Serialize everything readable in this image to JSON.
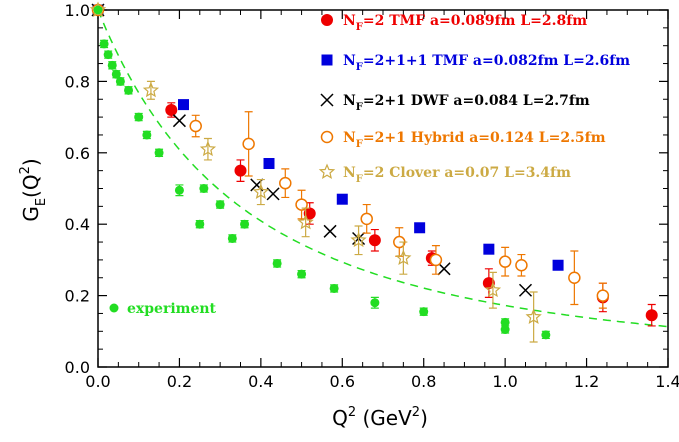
{
  "chart_data": {
    "type": "scatter",
    "title": "",
    "xlabel": {
      "base": "Q",
      "sup": "2",
      "unit_pre": " (GeV",
      "unit_sup": "2",
      "unit_post": ")"
    },
    "ylabel": {
      "base": "G",
      "sub": "E",
      "arg_pre": "(Q",
      "arg_sup": "2",
      "arg_post": ")"
    },
    "xlim": [
      0,
      1.4
    ],
    "ylim": [
      0,
      1.0
    ],
    "xticks": [
      "0.0",
      "0.2",
      "0.4",
      "0.6",
      "0.8",
      "1.0",
      "1.2",
      "1.4"
    ],
    "yticks": [
      "0.0",
      "0.2",
      "0.4",
      "0.6",
      "0.8",
      "1.0"
    ],
    "legend_placement": "top-right",
    "series": [
      {
        "name": "N_F=2 TMF a=0.089fm L=2.8fm",
        "label": {
          "pre": "N",
          "sub": "F",
          "post": "=2 TMF a=0.089fm L=2.8fm"
        },
        "marker": "filled-circle",
        "color": "#ee0000",
        "points": [
          [
            0.0,
            1.0
          ],
          [
            0.18,
            0.72
          ],
          [
            0.35,
            0.55
          ],
          [
            0.52,
            0.43
          ],
          [
            0.68,
            0.355
          ],
          [
            0.82,
            0.305
          ],
          [
            0.96,
            0.235
          ],
          [
            1.24,
            0.195
          ],
          [
            1.36,
            0.145
          ]
        ],
        "errors": [
          0,
          0.02,
          0.03,
          0.03,
          0.03,
          0.02,
          0.04,
          0.04,
          0.03
        ]
      },
      {
        "name": "N_F=2+1+1 TMF a=0.082fm L=2.6fm",
        "label": {
          "pre": "N",
          "sub": "F",
          "post": "=2+1+1 TMF a=0.082fm L=2.6fm"
        },
        "marker": "filled-square",
        "color": "#0000dd",
        "points": [
          [
            0.0,
            1.0
          ],
          [
            0.21,
            0.735
          ],
          [
            0.42,
            0.57
          ],
          [
            0.6,
            0.47
          ],
          [
            0.79,
            0.39
          ],
          [
            0.96,
            0.33
          ],
          [
            1.13,
            0.285
          ]
        ],
        "errors": [
          0,
          0,
          0,
          0,
          0,
          0,
          0
        ]
      },
      {
        "name": "N_F=2+1 DWF a=0.084 L=2.7fm",
        "label": {
          "pre": "N",
          "sub": "F",
          "post": "=2+1 DWF a=0.084 L=2.7fm"
        },
        "marker": "cross",
        "color": "#000000",
        "points": [
          [
            0.0,
            1.0
          ],
          [
            0.2,
            0.69
          ],
          [
            0.39,
            0.51
          ],
          [
            0.43,
            0.485
          ],
          [
            0.57,
            0.38
          ],
          [
            0.64,
            0.36
          ],
          [
            0.85,
            0.275
          ],
          [
            1.05,
            0.215
          ]
        ],
        "errors": [
          0,
          0,
          0,
          0,
          0,
          0,
          0,
          0
        ]
      },
      {
        "name": "N_F=2+1 Hybrid a=0.124 L=2.5fm",
        "label": {
          "pre": "N",
          "sub": "F",
          "post": "=2+1 Hybrid a=0.124 L=2.5fm"
        },
        "marker": "open-circle",
        "color": "#ee7700",
        "points": [
          [
            0.0,
            1.0
          ],
          [
            0.24,
            0.675
          ],
          [
            0.37,
            0.625
          ],
          [
            0.46,
            0.515
          ],
          [
            0.5,
            0.455
          ],
          [
            0.66,
            0.415
          ],
          [
            0.74,
            0.35
          ],
          [
            0.83,
            0.3
          ],
          [
            1.0,
            0.295
          ],
          [
            1.04,
            0.285
          ],
          [
            1.17,
            0.25
          ],
          [
            1.24,
            0.2
          ]
        ],
        "errors": [
          0,
          0.03,
          0.09,
          0.04,
          0.04,
          0.04,
          0.04,
          0.04,
          0.04,
          0.03,
          0.075,
          0.035
        ]
      },
      {
        "name": "N_F=2 Clover a=0.07 L=3.4fm",
        "label": {
          "pre": "N",
          "sub": "F",
          "post": "=2 Clover a=0.07 L=3.4fm"
        },
        "marker": "star",
        "color": "#ccaa44",
        "points": [
          [
            0.0,
            1.0
          ],
          [
            0.13,
            0.775
          ],
          [
            0.27,
            0.61
          ],
          [
            0.4,
            0.49
          ],
          [
            0.51,
            0.405
          ],
          [
            0.64,
            0.355
          ],
          [
            0.75,
            0.305
          ],
          [
            0.97,
            0.215
          ],
          [
            1.07,
            0.14
          ]
        ],
        "errors": [
          0,
          0.025,
          0.03,
          0.035,
          0.04,
          0.04,
          0.045,
          0.05,
          0.07
        ]
      },
      {
        "name": "experiment",
        "label": {
          "pre": "experiment",
          "sub": "",
          "post": ""
        },
        "marker": "small-filled-circle",
        "color": "#22dd22",
        "points": [
          [
            0.0,
            1.0
          ],
          [
            0.015,
            0.905
          ],
          [
            0.025,
            0.875
          ],
          [
            0.035,
            0.845
          ],
          [
            0.045,
            0.82
          ],
          [
            0.055,
            0.8
          ],
          [
            0.075,
            0.775
          ],
          [
            0.1,
            0.7
          ],
          [
            0.12,
            0.65
          ],
          [
            0.15,
            0.6
          ],
          [
            0.2,
            0.495
          ],
          [
            0.25,
            0.4
          ],
          [
            0.26,
            0.5
          ],
          [
            0.3,
            0.455
          ],
          [
            0.33,
            0.36
          ],
          [
            0.36,
            0.4
          ],
          [
            0.44,
            0.29
          ],
          [
            0.5,
            0.26
          ],
          [
            0.58,
            0.22
          ],
          [
            0.68,
            0.18
          ],
          [
            0.8,
            0.155
          ],
          [
            1.0,
            0.105
          ],
          [
            1.0,
            0.125
          ],
          [
            1.1,
            0.09
          ]
        ],
        "errors": [
          0,
          0.01,
          0.01,
          0.01,
          0.01,
          0.01,
          0.01,
          0.01,
          0.01,
          0.01,
          0.015,
          0.01,
          0.01,
          0.01,
          0.01,
          0.01,
          0.01,
          0.01,
          0.01,
          0.015,
          0.01,
          0.01,
          0.01,
          0.01
        ]
      }
    ],
    "fit_curve": {
      "style": "dashed",
      "color": "#22dd22",
      "form": "dipole",
      "lambda2": 0.71
    }
  }
}
